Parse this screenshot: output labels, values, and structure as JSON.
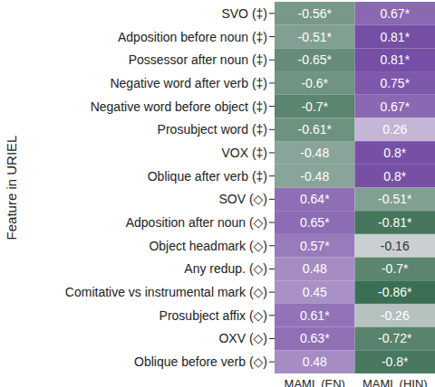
{
  "chart_data": {
    "type": "heatmap",
    "ylabel": "Feature in URIEL",
    "columns": [
      "MAML (EN)",
      "MAML (HIN)"
    ],
    "rows": [
      "SVO (‡)",
      "Adposition before noun (‡)",
      "Possessor after noun (‡)",
      "Negative word after verb (‡)",
      "Negative word before object (‡)",
      "Prosubject word (‡)",
      "VOX (‡)",
      "Oblique after verb (‡)",
      "SOV (◇)",
      "Adposition after noun (◇)",
      "Object headmark (◇)",
      "Any redup. (◇)",
      "Comitative vs instrumental mark (◇)",
      "Prosubject affix (◇)",
      "OXV (◇)",
      "Oblique before verb (◇)"
    ],
    "values": [
      [
        -0.56,
        0.67
      ],
      [
        -0.51,
        0.81
      ],
      [
        -0.65,
        0.81
      ],
      [
        -0.6,
        0.75
      ],
      [
        -0.7,
        0.67
      ],
      [
        -0.61,
        0.26
      ],
      [
        -0.48,
        0.8
      ],
      [
        -0.48,
        0.8
      ],
      [
        0.64,
        -0.51
      ],
      [
        0.65,
        -0.81
      ],
      [
        0.57,
        -0.16
      ],
      [
        0.48,
        -0.7
      ],
      [
        0.45,
        -0.86
      ],
      [
        0.61,
        -0.26
      ],
      [
        0.63,
        -0.72
      ],
      [
        0.48,
        -0.8
      ]
    ],
    "value_labels": [
      [
        "-0.56*",
        "0.67*"
      ],
      [
        "-0.51*",
        "0.81*"
      ],
      [
        "-0.65*",
        "0.81*"
      ],
      [
        "-0.6*",
        "0.75*"
      ],
      [
        "-0.7*",
        "0.67*"
      ],
      [
        "-0.61*",
        "0.26"
      ],
      [
        "-0.48",
        "0.8*"
      ],
      [
        "-0.48",
        "0.8*"
      ],
      [
        "0.64*",
        "-0.51*"
      ],
      [
        "0.65*",
        "-0.81*"
      ],
      [
        "0.57*",
        "-0.16"
      ],
      [
        "0.48",
        "-0.7*"
      ],
      [
        "0.45",
        "-0.86*"
      ],
      [
        "0.61*",
        "-0.26"
      ],
      [
        "0.63*",
        "-0.72*"
      ],
      [
        "0.48",
        "-0.8*"
      ]
    ],
    "color_range": [
      -1,
      1
    ],
    "data_labels": true
  }
}
